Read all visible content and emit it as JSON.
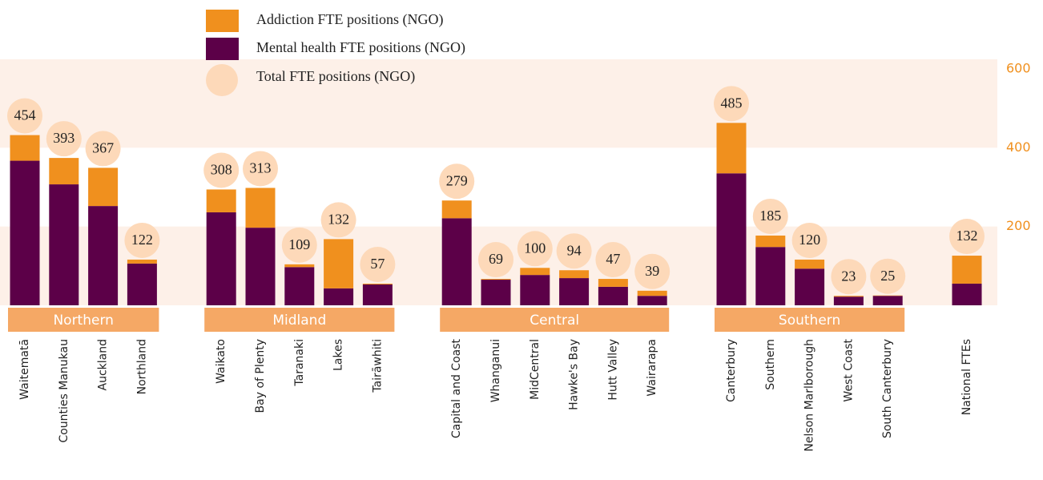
{
  "chart_data": {
    "type": "stacked-bar",
    "categories": [
      "Waitematā",
      "Counties Manukau",
      "Auckland",
      "Northland",
      "Waikato",
      "Bay of Plenty",
      "Taranaki",
      "Lakes",
      "Tairāwhiti",
      "Capital and Coast",
      "Whanganui",
      "MidCentral",
      "Hawke's Bay",
      "Hutt Valley",
      "Wairarapa",
      "Canterbury",
      "Southern",
      "Nelson Marlborough",
      "West Coast",
      "South Canterbury",
      "National FTEs"
    ],
    "groups": [
      {
        "name": "Northern",
        "categories": [
          "Waitematā",
          "Counties Manukau",
          "Auckland",
          "Northland"
        ]
      },
      {
        "name": "Midland",
        "categories": [
          "Waikato",
          "Bay of Plenty",
          "Taranaki",
          "Lakes",
          "Tairāwhiti"
        ]
      },
      {
        "name": "Central",
        "categories": [
          "Capital and Coast",
          "Whanganui",
          "MidCentral",
          "Hawke's Bay",
          "Hutt Valley",
          "Wairarapa"
        ]
      },
      {
        "name": "Southern",
        "categories": [
          "Canterbury",
          "Southern",
          "Nelson Marlborough",
          "West Coast",
          "South Canterbury"
        ]
      }
    ],
    "series": [
      {
        "name": "Mental health FTE positions (NGO)",
        "color": "#5c0048",
        "values": [
          367,
          307,
          252,
          106,
          236,
          197,
          97,
          43,
          53,
          221,
          65,
          77,
          69,
          47,
          24,
          335,
          148,
          93,
          22,
          24,
          55
        ]
      },
      {
        "name": "Addiction FTE positions (NGO)",
        "color": "#f0901e",
        "values": [
          65,
          67,
          97,
          10,
          58,
          101,
          7,
          125,
          2,
          45,
          2,
          18,
          20,
          20,
          13,
          128,
          29,
          23,
          2,
          1,
          71
        ]
      }
    ],
    "totals": {
      "name": "Total FTE positions (NGO)",
      "color": "#fdd9b9",
      "values": [
        454,
        393,
        367,
        122,
        308,
        313,
        109,
        132,
        57,
        279,
        69,
        100,
        94,
        47,
        39,
        485,
        185,
        120,
        23,
        25,
        132
      ]
    },
    "ylim": [
      0,
      600
    ],
    "yticks": [
      200,
      400,
      600
    ],
    "tick_color": "#f0901e",
    "band_color": "#fdf0e8",
    "group_color": "#f5a865"
  }
}
